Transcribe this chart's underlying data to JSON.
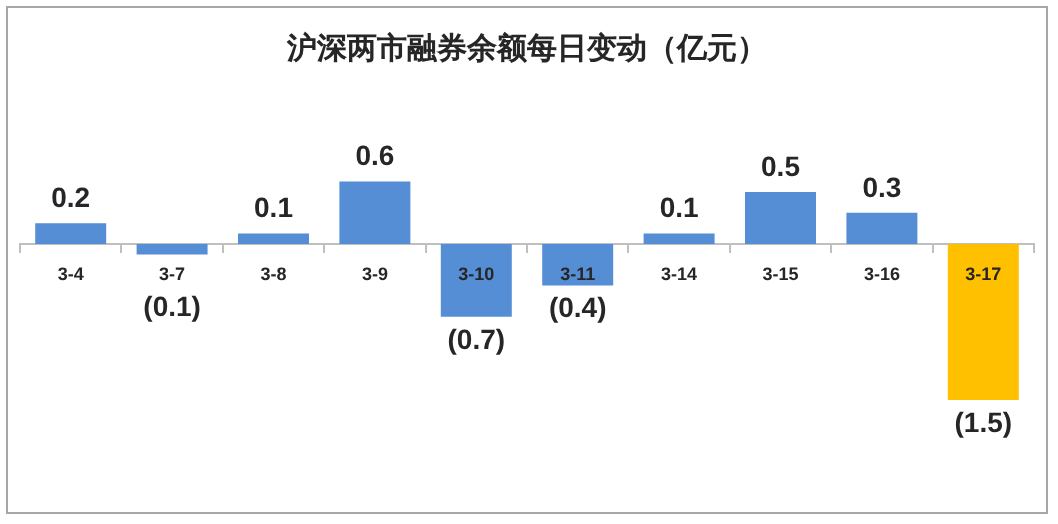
{
  "chart_data": {
    "type": "bar",
    "title": "沪深两市融券余额每日变动（亿元）",
    "categories": [
      "3-4",
      "3-7",
      "3-8",
      "3-9",
      "3-10",
      "3-11",
      "3-14",
      "3-15",
      "3-16",
      "3-17"
    ],
    "values": [
      0.2,
      -0.1,
      0.1,
      0.6,
      -0.7,
      -0.4,
      0.1,
      0.5,
      0.3,
      -1.5
    ],
    "colors": [
      "#558ed5",
      "#558ed5",
      "#558ed5",
      "#558ed5",
      "#558ed5",
      "#558ed5",
      "#558ed5",
      "#558ed5",
      "#558ed5",
      "#ffc000"
    ],
    "value_labels": [
      "0.2",
      "(0.1)",
      "0.1",
      "0.6",
      "(0.7)",
      "(0.4)",
      "0.1",
      "0.5",
      "0.3",
      "(1.5)"
    ],
    "grid": false,
    "legend": false
  }
}
